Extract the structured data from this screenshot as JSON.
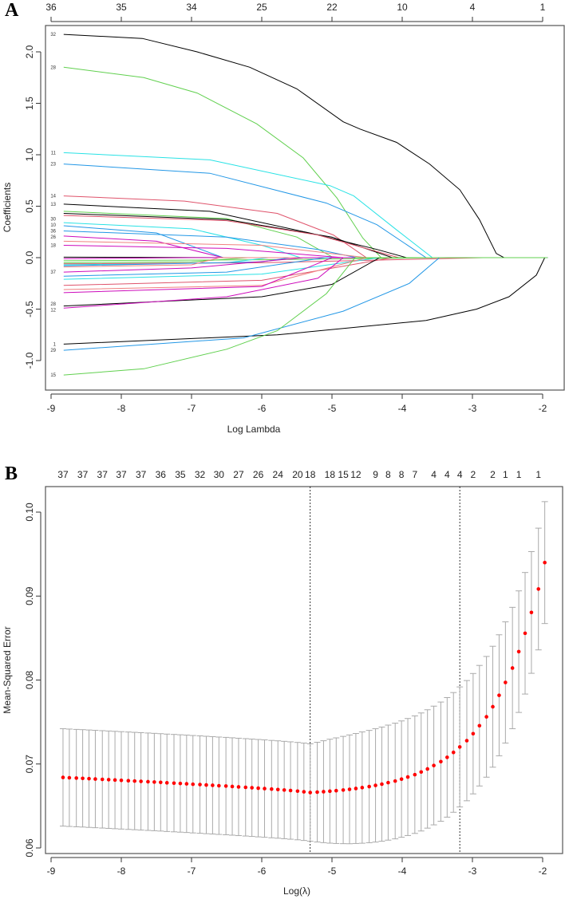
{
  "panel_labels": {
    "a": "A",
    "b": "B"
  },
  "chart_data": [
    {
      "type": "line",
      "panel": "A",
      "title": "",
      "xlabel": "Log Lambda",
      "ylabel": "Coefficients",
      "xlim": [
        -9.1,
        -1.7
      ],
      "ylim": [
        -1.27,
        2.25
      ],
      "grid": false,
      "x_ticks": [
        -9,
        -8,
        -7,
        -6,
        -5,
        -4,
        -3,
        -2
      ],
      "y_ticks": [
        -1.0,
        -0.5,
        0.0,
        0.5,
        1.0,
        1.5,
        2.0
      ],
      "top_axis": {
        "at": [
          -9,
          -8,
          -7,
          -6,
          -5,
          -4,
          -3,
          -2
        ],
        "labels": [
          "36",
          "35",
          "34",
          "25",
          "22",
          "10",
          "4",
          "1"
        ]
      },
      "series": [
        {
          "name": "32",
          "color": "#000000",
          "points": [
            [
              -8.82,
              2.17
            ],
            [
              -7.7,
              2.13
            ],
            [
              -6.92,
              2.0
            ],
            [
              -6.17,
              1.85
            ],
            [
              -5.5,
              1.64
            ],
            [
              -4.84,
              1.32
            ],
            [
              -4.6,
              1.25
            ],
            [
              -4.08,
              1.12
            ],
            [
              -3.61,
              0.91
            ],
            [
              -3.18,
              0.66
            ],
            [
              -2.9,
              0.37
            ],
            [
              -2.66,
              0.04
            ],
            [
              -2.55,
              0
            ]
          ]
        },
        {
          "name": "28",
          "color": "#61D04F",
          "points": [
            [
              -8.82,
              1.85
            ],
            [
              -7.68,
              1.75
            ],
            [
              -6.92,
              1.6
            ],
            [
              -6.07,
              1.3
            ],
            [
              -5.41,
              0.97
            ],
            [
              -4.93,
              0.58
            ],
            [
              -4.56,
              0.19
            ],
            [
              -4.3,
              0
            ]
          ]
        },
        {
          "name": "11",
          "color": "#28E2E5",
          "points": [
            [
              -8.82,
              1.02
            ],
            [
              -6.74,
              0.95
            ],
            [
              -5.03,
              0.7
            ],
            [
              -4.69,
              0.6
            ],
            [
              -4.08,
              0.27
            ],
            [
              -3.57,
              0
            ]
          ]
        },
        {
          "name": "23",
          "color": "#2297E6",
          "points": [
            [
              -8.82,
              0.91
            ],
            [
              -6.74,
              0.82
            ],
            [
              -5.08,
              0.53
            ],
            [
              -4.36,
              0.32
            ],
            [
              -3.66,
              0
            ]
          ]
        },
        {
          "name": "14",
          "color": "#DF536B",
          "points": [
            [
              -8.82,
              0.6
            ],
            [
              -7.1,
              0.55
            ],
            [
              -5.78,
              0.43
            ],
            [
              -4.98,
              0.22
            ],
            [
              -4.51,
              0
            ]
          ]
        },
        {
          "name": "13",
          "color": "#000000",
          "points": [
            [
              -8.82,
              0.52
            ],
            [
              -6.74,
              0.45
            ],
            [
              -5.32,
              0.24
            ],
            [
              -4.36,
              0.08
            ],
            [
              -3.94,
              0
            ]
          ]
        },
        {
          "name": "",
          "color": "#61D04F",
          "points": [
            [
              -8.82,
              0.45
            ],
            [
              -6.5,
              0.38
            ],
            [
              -5.5,
              0.2
            ],
            [
              -4.98,
              0
            ]
          ]
        },
        {
          "name": "",
          "color": "#000000",
          "points": [
            [
              -8.82,
              0.43
            ],
            [
              -6.5,
              0.37
            ],
            [
              -5.0,
              0.2
            ],
            [
              -4.14,
              0
            ]
          ]
        },
        {
          "name": "",
          "color": "#DF536B",
          "points": [
            [
              -8.82,
              0.41
            ],
            [
              -6.5,
              0.36
            ],
            [
              -5.2,
              0.22
            ],
            [
              -4.05,
              0
            ]
          ]
        },
        {
          "name": "30",
          "color": "#28E2E5",
          "points": [
            [
              -8.82,
              0.34
            ],
            [
              -7.0,
              0.28
            ],
            [
              -6.0,
              0.12
            ],
            [
              -5.45,
              0
            ]
          ]
        },
        {
          "name": "10",
          "color": "#2297E6",
          "points": [
            [
              -8.82,
              0.31
            ],
            [
              -7.5,
              0.24
            ],
            [
              -6.55,
              0
            ]
          ]
        },
        {
          "name": "36",
          "color": "#2297E6",
          "points": [
            [
              -8.82,
              0.26
            ],
            [
              -6.5,
              0.2
            ],
            [
              -5.2,
              0.08
            ],
            [
              -4.65,
              0
            ]
          ]
        },
        {
          "name": "26",
          "color": "#CD0BBC",
          "points": [
            [
              -8.82,
              0.21
            ],
            [
              -7.5,
              0.16
            ],
            [
              -6.55,
              0
            ]
          ]
        },
        {
          "name": "",
          "color": "#F08080",
          "points": [
            [
              -8.82,
              0.16
            ],
            [
              -6.0,
              0.12
            ],
            [
              -4.51,
              0
            ]
          ]
        },
        {
          "name": "18",
          "color": "#CD0BBC",
          "points": [
            [
              -8.82,
              0.12
            ],
            [
              -6.5,
              0.09
            ],
            [
              -4.84,
              0
            ]
          ]
        },
        {
          "name": "",
          "color": "#000000",
          "points": [
            [
              -8.82,
              0.005
            ],
            [
              -6.3,
              0
            ]
          ]
        },
        {
          "name": "",
          "color": "#CD0BBC",
          "points": [
            [
              -8.82,
              -0.01
            ],
            [
              -7.0,
              0
            ]
          ]
        },
        {
          "name": "",
          "color": "#61D04F",
          "points": [
            [
              -8.82,
              -0.03
            ],
            [
              -6.0,
              -0.02
            ],
            [
              -3.5,
              0
            ]
          ]
        },
        {
          "name": "",
          "color": "#61D04F",
          "points": [
            [
              -8.82,
              -0.05
            ],
            [
              -7.0,
              -0.04
            ],
            [
              -6.2,
              0
            ]
          ]
        },
        {
          "name": "",
          "color": "#28E2E5",
          "points": [
            [
              -8.82,
              -0.07
            ],
            [
              -6.5,
              -0.05
            ],
            [
              -5.9,
              0
            ]
          ]
        },
        {
          "name": "",
          "color": "#DF536B",
          "points": [
            [
              -8.82,
              -0.06
            ],
            [
              -6.0,
              -0.05
            ],
            [
              -2.85,
              0
            ]
          ]
        },
        {
          "name": "",
          "color": "#2297E6",
          "points": [
            [
              -8.82,
              -0.08
            ],
            [
              -6.0,
              -0.04
            ],
            [
              -5.6,
              0
            ]
          ]
        },
        {
          "name": "",
          "color": "#F08080",
          "points": [
            [
              -8.82,
              -0.09
            ],
            [
              -7.0,
              -0.07
            ],
            [
              -6.6,
              0
            ]
          ]
        },
        {
          "name": "37",
          "color": "#CD0BBC",
          "points": [
            [
              -8.82,
              -0.14
            ],
            [
              -7.0,
              -0.1
            ],
            [
              -5.4,
              0
            ]
          ]
        },
        {
          "name": "",
          "color": "#2297E6",
          "points": [
            [
              -8.82,
              -0.18
            ],
            [
              -6.5,
              -0.14
            ],
            [
              -5.1,
              0
            ]
          ]
        },
        {
          "name": "",
          "color": "#28E2E5",
          "points": [
            [
              -8.82,
              -0.21
            ],
            [
              -6.0,
              -0.16
            ],
            [
              -4.32,
              0
            ]
          ]
        },
        {
          "name": "",
          "color": "#DF536B",
          "points": [
            [
              -8.82,
              -0.27
            ],
            [
              -6.0,
              -0.22
            ],
            [
              -4.14,
              0
            ]
          ]
        },
        {
          "name": "",
          "color": "#F08080",
          "points": [
            [
              -8.82,
              -0.31
            ],
            [
              -6.0,
              -0.27
            ],
            [
              -4.5,
              0
            ]
          ]
        },
        {
          "name": "",
          "color": "#CD0BBC",
          "points": [
            [
              -8.82,
              -0.34
            ],
            [
              -6.0,
              -0.28
            ],
            [
              -5.0,
              0
            ]
          ]
        },
        {
          "name": "28",
          "color": "#000000",
          "points": [
            [
              -8.82,
              -0.47
            ],
            [
              -6.0,
              -0.38
            ],
            [
              -5.0,
              -0.26
            ],
            [
              -4.32,
              0
            ]
          ]
        },
        {
          "name": "12",
          "color": "#CD0BBC",
          "points": [
            [
              -8.82,
              -0.49
            ],
            [
              -6.5,
              -0.38
            ],
            [
              -5.2,
              -0.2
            ],
            [
              -4.84,
              0
            ]
          ]
        },
        {
          "name": "1",
          "color": "#000000",
          "points": [
            [
              -8.82,
              -0.84
            ],
            [
              -5.78,
              -0.75
            ],
            [
              -3.66,
              -0.61
            ],
            [
              -2.94,
              -0.5
            ],
            [
              -2.48,
              -0.38
            ],
            [
              -2.09,
              -0.17
            ],
            [
              -1.97,
              0
            ]
          ]
        },
        {
          "name": "29",
          "color": "#2297E6",
          "points": [
            [
              -8.82,
              -0.9
            ],
            [
              -6.26,
              -0.78
            ],
            [
              -4.84,
              -0.52
            ],
            [
              -3.9,
              -0.25
            ],
            [
              -3.47,
              0
            ]
          ]
        },
        {
          "name": "15",
          "color": "#61D04F",
          "points": [
            [
              -8.82,
              -1.14
            ],
            [
              -7.68,
              -1.08
            ],
            [
              -6.5,
              -0.89
            ],
            [
              -5.78,
              -0.71
            ],
            [
              -5.08,
              -0.35
            ],
            [
              -4.67,
              0
            ]
          ]
        }
      ]
    },
    {
      "type": "scatter",
      "panel": "B",
      "title": "",
      "xlabel": "Log(λ)",
      "ylabel": "Mean-Squared Error",
      "xlim": [
        -9.1,
        -1.7
      ],
      "ylim": [
        0.0594,
        0.1036
      ],
      "grid": false,
      "x_ticks": [
        -9,
        -8,
        -7,
        -6,
        -5,
        -4,
        -3,
        -2
      ],
      "y_ticks": [
        0.06,
        0.07,
        0.08,
        0.09,
        0.1
      ],
      "y_tick_labels": [
        "0.06",
        "0.07",
        "0.08",
        "0.09",
        "0.10"
      ],
      "point_color": "#FF0000",
      "errorbar_color": "#AAAAAA",
      "lambda_min_log": -5.31,
      "lambda_1se_log": -3.18,
      "x": [
        -8.83,
        -8.74,
        -8.64,
        -8.55,
        -8.46,
        -8.37,
        -8.27,
        -8.18,
        -8.09,
        -8.0,
        -7.9,
        -7.81,
        -7.72,
        -7.62,
        -7.53,
        -7.44,
        -7.35,
        -7.25,
        -7.16,
        -7.07,
        -6.98,
        -6.88,
        -6.79,
        -6.7,
        -6.61,
        -6.51,
        -6.42,
        -6.33,
        -6.23,
        -6.14,
        -6.05,
        -5.96,
        -5.86,
        -5.77,
        -5.68,
        -5.59,
        -5.49,
        -5.4,
        -5.31,
        -5.21,
        -5.12,
        -5.03,
        -4.94,
        -4.84,
        -4.75,
        -4.66,
        -4.57,
        -4.47,
        -4.38,
        -4.29,
        -4.2,
        -4.1,
        -4.01,
        -3.92,
        -3.82,
        -3.73,
        -3.64,
        -3.55,
        -3.45,
        -3.36,
        -3.27,
        -3.18,
        -3.08,
        -2.99,
        -2.9,
        -2.8,
        -2.71,
        -2.62,
        -2.53,
        -2.43,
        -2.34,
        -2.25,
        -2.16,
        -2.06,
        -1.97
      ],
      "mse": [
        0.0684,
        0.06836,
        0.06832,
        0.06829,
        0.06825,
        0.06821,
        0.06817,
        0.06813,
        0.06809,
        0.06805,
        0.06801,
        0.06797,
        0.06793,
        0.06789,
        0.06785,
        0.06781,
        0.06776,
        0.06772,
        0.06768,
        0.06764,
        0.06759,
        0.06755,
        0.0675,
        0.06746,
        0.06741,
        0.06737,
        0.06732,
        0.06727,
        0.06722,
        0.06717,
        0.06712,
        0.06707,
        0.06701,
        0.06696,
        0.0669,
        0.06684,
        0.06677,
        0.06669,
        0.0666,
        0.06665,
        0.0667,
        0.06676,
        0.06682,
        0.0669,
        0.06698,
        0.06708,
        0.06719,
        0.06731,
        0.06745,
        0.0676,
        0.06778,
        0.06797,
        0.0682,
        0.06845,
        0.06873,
        0.06905,
        0.06941,
        0.06982,
        0.07028,
        0.07079,
        0.07138,
        0.07203,
        0.07278,
        0.07361,
        0.07456,
        0.07562,
        0.07682,
        0.07818,
        0.07971,
        0.08143,
        0.08338,
        0.08557,
        0.08805,
        0.09084,
        0.09399
      ],
      "se": [
        0.0058,
        0.0058,
        0.0058,
        0.0058,
        0.0058,
        0.0058,
        0.0058,
        0.0058,
        0.0058,
        0.0058,
        0.0058,
        0.0058,
        0.0058,
        0.0058,
        0.0058,
        0.0058,
        0.0058,
        0.0058,
        0.0058,
        0.0058,
        0.0058,
        0.0058,
        0.0058,
        0.0058,
        0.0058,
        0.0058,
        0.0058,
        0.0058,
        0.0058,
        0.0058,
        0.0058,
        0.0058,
        0.0058,
        0.0058,
        0.0058,
        0.0058,
        0.0058,
        0.0058,
        0.0058,
        0.00594,
        0.00607,
        0.00619,
        0.00629,
        0.00639,
        0.00648,
        0.00655,
        0.00663,
        0.00669,
        0.00675,
        0.0068,
        0.00685,
        0.00689,
        0.00693,
        0.00697,
        0.007,
        0.00703,
        0.00705,
        0.00707,
        0.0071,
        0.00712,
        0.00713,
        0.00715,
        0.00716,
        0.00717,
        0.00718,
        0.00719,
        0.0072,
        0.00721,
        0.00722,
        0.00723,
        0.00724,
        0.00724,
        0.00725,
        0.00725,
        0.00726
      ],
      "top_axis": {
        "at_index": [
          0,
          3,
          6,
          9,
          12,
          15,
          18,
          21,
          24,
          27,
          30,
          33,
          36,
          38,
          41,
          43,
          45,
          48,
          50,
          52,
          54,
          57,
          59,
          61,
          63,
          66,
          68,
          70,
          73
        ],
        "labels": [
          "37",
          "37",
          "37",
          "37",
          "37",
          "36",
          "35",
          "32",
          "30",
          "27",
          "26",
          "24",
          "20",
          "18",
          "18",
          "15",
          "12",
          "9",
          "8",
          "8",
          "7",
          "4",
          "4",
          "4",
          "2",
          "2",
          "1",
          "1",
          "1"
        ]
      }
    }
  ]
}
